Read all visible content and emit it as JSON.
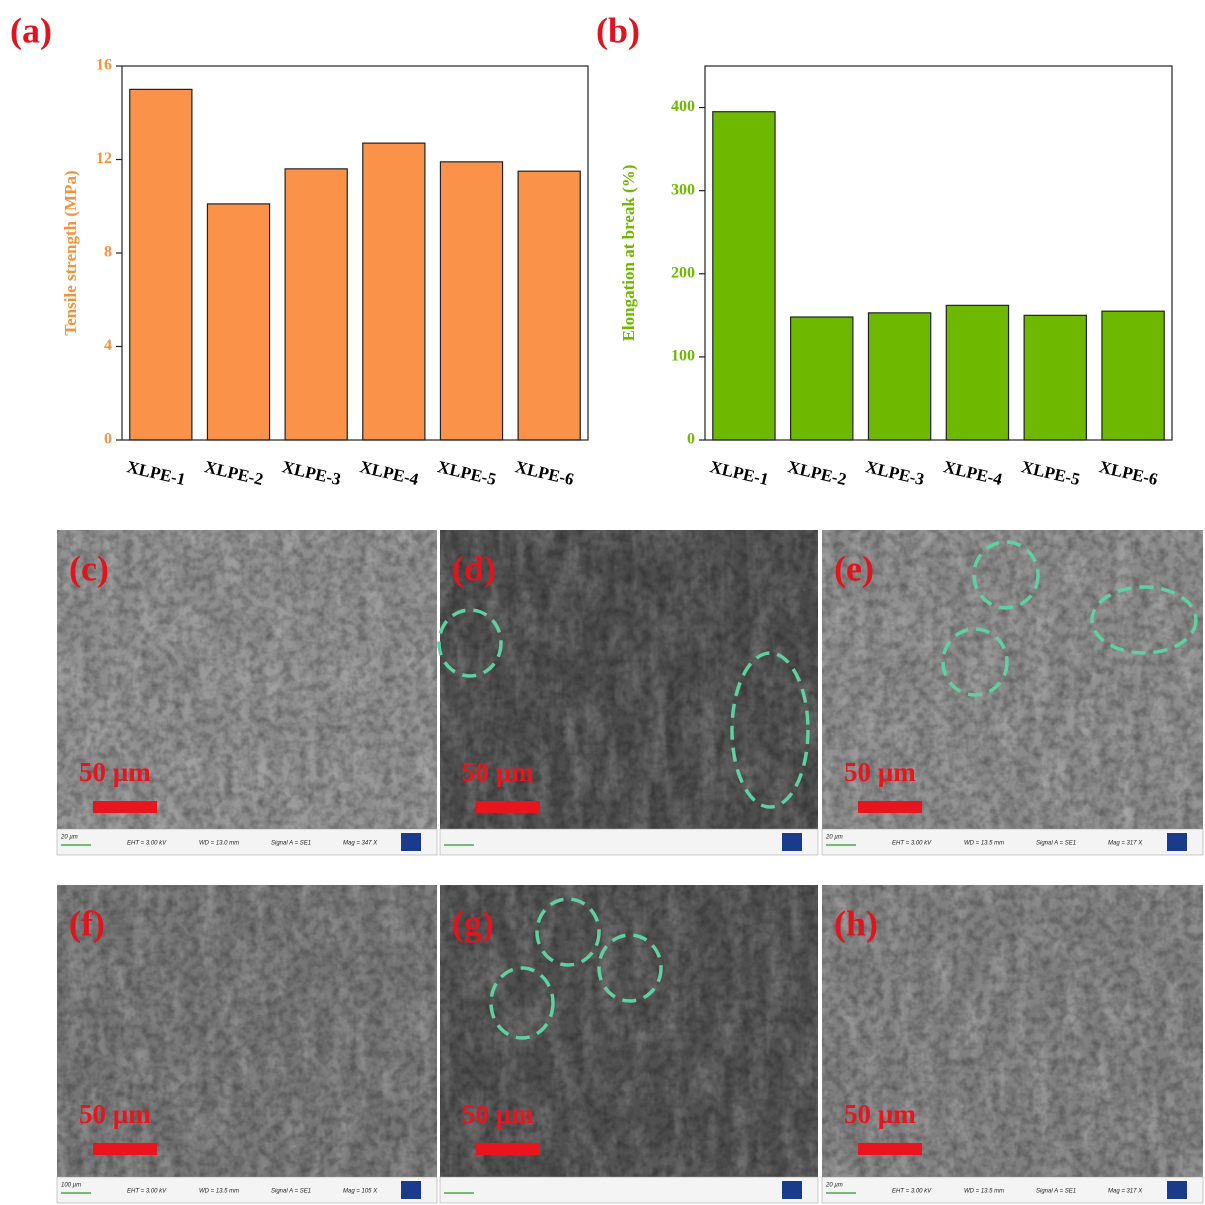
{
  "chart_data": [
    {
      "type": "bar",
      "panel_label": "(a)",
      "y_label": "Tensile strength (MPa)",
      "categories": [
        "XLPE-1",
        "XLPE-2",
        "XLPE-3",
        "XLPE-4",
        "XLPE-5",
        "XLPE-6"
      ],
      "values": [
        15.0,
        10.1,
        11.6,
        12.7,
        11.9,
        11.5
      ],
      "color": "#fb924a",
      "axis_color": "#f7923a",
      "ylim": [
        0,
        16
      ],
      "yticks": [
        0,
        4,
        8,
        12,
        16
      ]
    },
    {
      "type": "bar",
      "panel_label": "(b)",
      "y_label": "Elongation at break (%)",
      "categories": [
        "XLPE-1",
        "XLPE-2",
        "XLPE-3",
        "XLPE-4",
        "XLPE-5",
        "XLPE-6"
      ],
      "values": [
        395,
        148,
        153,
        162,
        150,
        155
      ],
      "color": "#6fb800",
      "axis_color": "#6fb800",
      "ylim": [
        0,
        450
      ],
      "yticks": [
        0,
        100,
        200,
        300,
        400
      ]
    }
  ],
  "images": [
    {
      "label": "(c)",
      "scale": "50 µm",
      "footer": [
        "20 µm",
        "EHT = 3.00 kV",
        "WD = 13.0 mm",
        "Signal A = SE1",
        "Mag = 347 X"
      ]
    },
    {
      "label": "(d)",
      "scale": "50 µm"
    },
    {
      "label": "(e)",
      "scale": "50 µm",
      "footer": [
        "20 µm",
        "EHT = 3.00 kV",
        "WD = 13.5 mm",
        "Signal A = SE1",
        "Mag = 317 X"
      ]
    },
    {
      "label": "(f)",
      "scale": "50 µm",
      "footer": [
        "100 µm",
        "EHT = 3.00 kV",
        "WD = 13.5 mm",
        "Signal A = SE1",
        "Mag = 105 X"
      ]
    },
    {
      "label": "(g)",
      "scale": "50 µm"
    },
    {
      "label": "(h)",
      "scale": "50 µm",
      "footer": [
        "20 µm",
        "EHT = 3.00 kV",
        "WD = 13.5 mm",
        "Signal A = SE1",
        "Mag = 317 X"
      ]
    }
  ]
}
